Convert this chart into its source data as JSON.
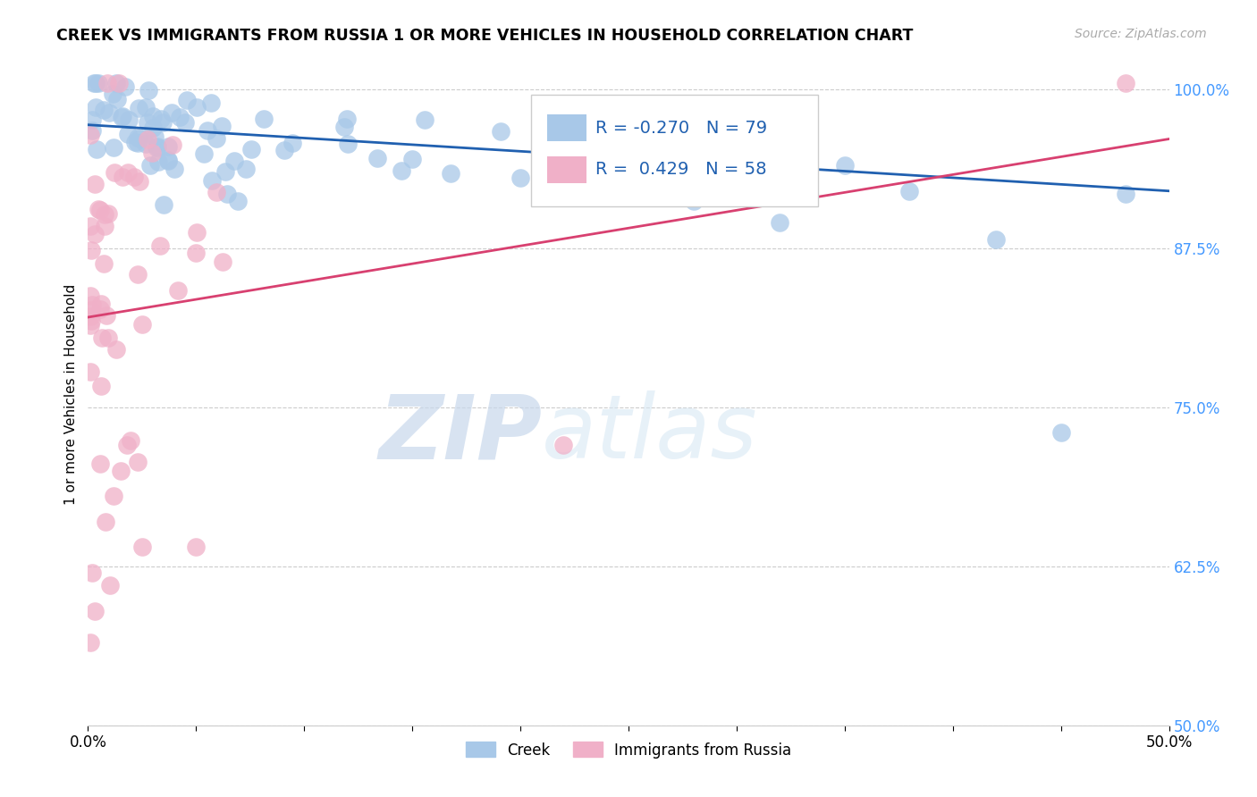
{
  "title": "CREEK VS IMMIGRANTS FROM RUSSIA 1 OR MORE VEHICLES IN HOUSEHOLD CORRELATION CHART",
  "source": "Source: ZipAtlas.com",
  "ylabel": "1 or more Vehicles in Household",
  "xlim": [
    0.0,
    0.5
  ],
  "ylim": [
    0.5,
    1.02
  ],
  "ytick_vals": [
    0.5,
    0.625,
    0.75,
    0.875,
    1.0
  ],
  "ytick_labels": [
    "50.0%",
    "62.5%",
    "75.0%",
    "87.5%",
    "100.0%"
  ],
  "xtick_vals": [
    0.0,
    0.05,
    0.1,
    0.15,
    0.2,
    0.25,
    0.3,
    0.35,
    0.4,
    0.45,
    0.5
  ],
  "creek_color": "#a8c8e8",
  "russia_color": "#f0b0c8",
  "creek_line_color": "#2060b0",
  "russia_line_color": "#d84070",
  "legend_R_creek": "-0.270",
  "legend_N_creek": "79",
  "legend_R_russia": "0.429",
  "legend_N_russia": "58",
  "watermark_zip": "ZIP",
  "watermark_atlas": "atlas",
  "legend_label_creek": "Creek",
  "legend_label_russia": "Immigrants from Russia",
  "background_color": "#ffffff",
  "grid_color": "#cccccc",
  "ytick_color": "#4499ff",
  "creek_line_y0": 0.972,
  "creek_line_y1": 0.92,
  "russia_line_y0": 0.855,
  "russia_line_y1": 0.97,
  "russia_line_x1": 0.1
}
